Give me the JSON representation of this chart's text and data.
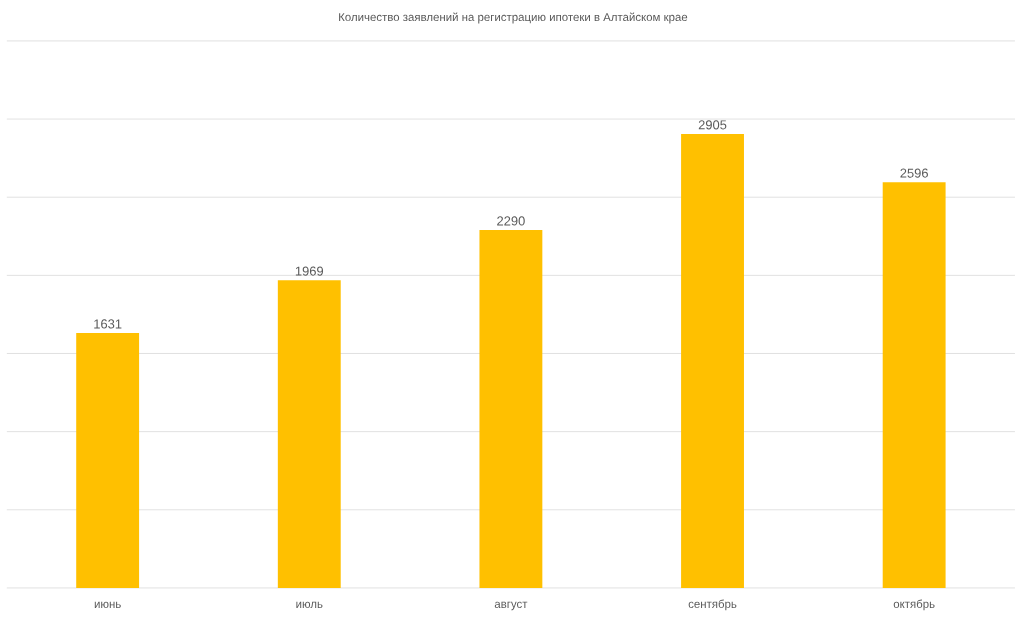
{
  "chart_data": {
    "type": "bar",
    "title": "Количество заявлений на регистрацию ипотеки в Алтайском крае",
    "categories": [
      "июнь",
      "июль",
      "август",
      "сентябрь",
      "октябрь"
    ],
    "values": [
      1631,
      1969,
      2290,
      2905,
      2596
    ],
    "color": "#ffc000",
    "ylim": [
      0,
      3500
    ],
    "yticks": [
      {
        "value": 0,
        "label": null
      },
      {
        "value": 500,
        "label": null
      },
      {
        "value": 1000,
        "label": null
      },
      {
        "value": 1500,
        "label": null
      },
      {
        "value": 2000,
        "label": null
      },
      {
        "value": 2500,
        "label": null
      },
      {
        "value": 3000,
        "label": null
      },
      {
        "value": 3500,
        "label": null
      }
    ],
    "tick_labels": "x",
    "grid": "y",
    "data_labels": true
  }
}
